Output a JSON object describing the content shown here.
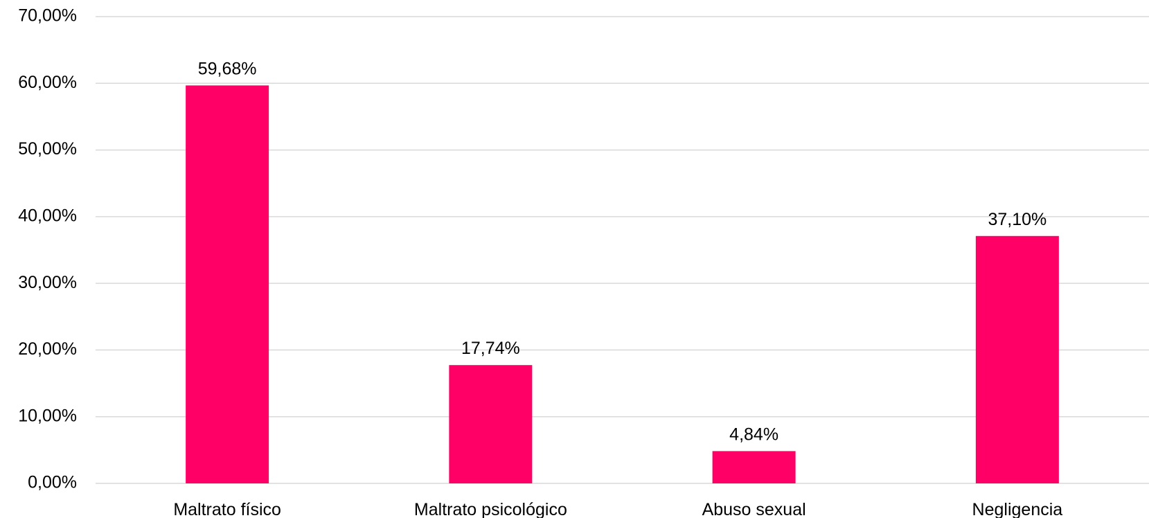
{
  "chart_data": {
    "type": "bar",
    "title": "",
    "xlabel": "",
    "ylabel": "",
    "categories": [
      "Maltrato físico",
      "Maltrato psicológico",
      "Abuso sexual",
      "Negligencia"
    ],
    "values": [
      59.68,
      17.74,
      4.84,
      37.1
    ],
    "data_labels": [
      "59,68%",
      "17,74%",
      "4,84%",
      "37,10%"
    ],
    "ylim": [
      0,
      70
    ],
    "y_ticks": [
      0,
      10,
      20,
      30,
      40,
      50,
      60,
      70
    ],
    "y_tick_labels": [
      "0,00%",
      "10,00%",
      "20,00%",
      "30,00%",
      "40,00%",
      "50,00%",
      "60,00%",
      "70,00%"
    ],
    "grid": true,
    "legend": "none",
    "bar_color": "#FF0066",
    "grid_color": "#D9D9D9"
  }
}
